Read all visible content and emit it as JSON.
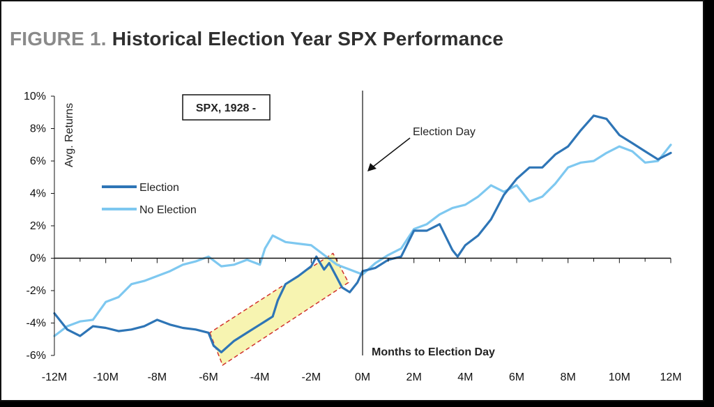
{
  "figure": {
    "prefix": "FIGURE 1.",
    "title": "Historical Election Year SPX Performance"
  },
  "chart_data": {
    "type": "line",
    "boxed_label": "SPX, 1928 -",
    "ylabel": "Avg. Returns",
    "xlabel": "Months to Election Day",
    "annotation": "Election Day",
    "xlim": [
      -12,
      12
    ],
    "ylim": [
      -6,
      10
    ],
    "x_ticks": [
      "-12M",
      "-10M",
      "-8M",
      "-6M",
      "-4M",
      "-2M",
      "0M",
      "2M",
      "4M",
      "6M",
      "8M",
      "10M",
      "12M"
    ],
    "y_ticks": [
      "10%",
      "8%",
      "6%",
      "4%",
      "2%",
      "0%",
      "-2%",
      "-4%",
      "-6%"
    ],
    "grid": false,
    "legend_position": "left",
    "highlight": {
      "x_range": [
        -6,
        -0.5
      ],
      "style": "yellow band, red dashed border"
    },
    "series": [
      {
        "name": "Election",
        "color": "#2e75b6",
        "points": [
          [
            -12,
            -3.4
          ],
          [
            -11.5,
            -4.4
          ],
          [
            -11,
            -4.8
          ],
          [
            -10.5,
            -4.2
          ],
          [
            -10,
            -4.3
          ],
          [
            -9.5,
            -4.5
          ],
          [
            -9,
            -4.4
          ],
          [
            -8.5,
            -4.2
          ],
          [
            -8,
            -3.8
          ],
          [
            -7.5,
            -4.1
          ],
          [
            -7,
            -4.3
          ],
          [
            -6.5,
            -4.4
          ],
          [
            -6,
            -4.6
          ],
          [
            -5.8,
            -5.4
          ],
          [
            -5.5,
            -5.8
          ],
          [
            -5,
            -5.1
          ],
          [
            -4.5,
            -4.6
          ],
          [
            -4,
            -4.1
          ],
          [
            -3.5,
            -3.6
          ],
          [
            -3.3,
            -2.6
          ],
          [
            -3,
            -1.6
          ],
          [
            -2.5,
            -1.1
          ],
          [
            -2,
            -0.5
          ],
          [
            -1.8,
            0.1
          ],
          [
            -1.5,
            -0.7
          ],
          [
            -1.3,
            -0.3
          ],
          [
            -1,
            -1.2
          ],
          [
            -0.8,
            -1.8
          ],
          [
            -0.5,
            -2.1
          ],
          [
            -0.2,
            -1.5
          ],
          [
            0,
            -0.8
          ],
          [
            0.5,
            -0.6
          ],
          [
            1,
            -0.1
          ],
          [
            1.5,
            0.1
          ],
          [
            2,
            1.7
          ],
          [
            2.5,
            1.7
          ],
          [
            3,
            2.1
          ],
          [
            3.5,
            0.5
          ],
          [
            3.7,
            0.1
          ],
          [
            4,
            0.8
          ],
          [
            4.5,
            1.4
          ],
          [
            5,
            2.4
          ],
          [
            5.5,
            3.9
          ],
          [
            6,
            4.9
          ],
          [
            6.5,
            5.6
          ],
          [
            7,
            5.6
          ],
          [
            7.5,
            6.4
          ],
          [
            8,
            6.9
          ],
          [
            8.5,
            7.9
          ],
          [
            9,
            8.8
          ],
          [
            9.5,
            8.6
          ],
          [
            10,
            7.6
          ],
          [
            10.5,
            7.1
          ],
          [
            11,
            6.6
          ],
          [
            11.5,
            6.1
          ],
          [
            12,
            6.5
          ]
        ]
      },
      {
        "name": "No Election",
        "color": "#7ec8f0",
        "points": [
          [
            -12,
            -4.8
          ],
          [
            -11.5,
            -4.2
          ],
          [
            -11,
            -3.9
          ],
          [
            -10.5,
            -3.8
          ],
          [
            -10,
            -2.7
          ],
          [
            -9.5,
            -2.4
          ],
          [
            -9,
            -1.6
          ],
          [
            -8.5,
            -1.4
          ],
          [
            -8,
            -1.1
          ],
          [
            -7.5,
            -0.8
          ],
          [
            -7,
            -0.4
          ],
          [
            -6.5,
            -0.2
          ],
          [
            -6,
            0.1
          ],
          [
            -5.5,
            -0.5
          ],
          [
            -5,
            -0.4
          ],
          [
            -4.5,
            -0.1
          ],
          [
            -4,
            -0.4
          ],
          [
            -3.8,
            0.6
          ],
          [
            -3.5,
            1.4
          ],
          [
            -3,
            1.0
          ],
          [
            -2.5,
            0.9
          ],
          [
            -2,
            0.8
          ],
          [
            -1.5,
            0.2
          ],
          [
            -1,
            -0.4
          ],
          [
            -0.5,
            -0.7
          ],
          [
            0,
            -1.0
          ],
          [
            0.5,
            -0.3
          ],
          [
            1,
            0.2
          ],
          [
            1.5,
            0.6
          ],
          [
            2,
            1.8
          ],
          [
            2.5,
            2.1
          ],
          [
            3,
            2.7
          ],
          [
            3.5,
            3.1
          ],
          [
            4,
            3.3
          ],
          [
            4.5,
            3.8
          ],
          [
            5,
            4.5
          ],
          [
            5.5,
            4.1
          ],
          [
            6,
            4.5
          ],
          [
            6.5,
            3.5
          ],
          [
            7,
            3.8
          ],
          [
            7.5,
            4.6
          ],
          [
            8,
            5.6
          ],
          [
            8.5,
            5.9
          ],
          [
            9,
            6.0
          ],
          [
            9.5,
            6.5
          ],
          [
            10,
            6.9
          ],
          [
            10.5,
            6.6
          ],
          [
            11,
            5.9
          ],
          [
            11.5,
            6.0
          ],
          [
            12,
            7.0
          ]
        ]
      }
    ]
  }
}
